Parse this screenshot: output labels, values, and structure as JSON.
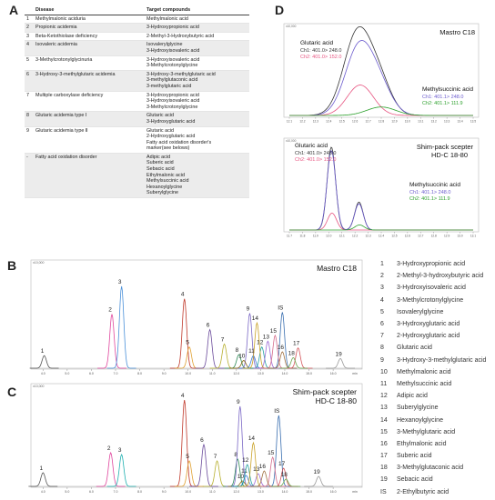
{
  "panel_letters": {
    "a": "A",
    "b": "B",
    "c": "C",
    "d": "D"
  },
  "table": {
    "header": {
      "disease": "Disease",
      "target": "Target compounds"
    },
    "rows": [
      {
        "no": "1",
        "disease": "Methylmalonic aciduria",
        "targets": [
          "Methylmalonic acid"
        ]
      },
      {
        "no": "2",
        "disease": "Propionic acidemia",
        "targets": [
          "3-Hydroxypropionic acid"
        ]
      },
      {
        "no": "3",
        "disease": "Beta-Ketothiolase deficiency",
        "targets": [
          "2-Methyl-3-Hydroxybutyric acid"
        ]
      },
      {
        "no": "4",
        "disease": "Isovaleric acidemia",
        "targets": [
          "Isovalerylglycine",
          "3-Hydroxyisovaleric acid"
        ]
      },
      {
        "no": "5",
        "disease": "3-Methylcrotonylglycinuria",
        "targets": [
          "3-Hydroxyisovaleric acid",
          "3-Methylcrotonylglycine"
        ]
      },
      {
        "no": "6",
        "disease": "3-Hydroxy-3-methylglutaric acidemia",
        "targets": [
          "3-Hydroxy-3-methylglutaric acid",
          "3-methylglutaconic acid",
          "3-methylglutaric acid"
        ]
      },
      {
        "no": "7",
        "disease": "Multiple carboxylase deficiency",
        "targets": [
          "3-Hydroxypropionic acid",
          "3-Hydroxyisovaleric acid",
          "3-Methylcrotonylglycine"
        ]
      },
      {
        "no": "8",
        "disease": "Glutaric acidemia type Ⅰ",
        "targets": [
          "Glutaric acid",
          "3-Hydroxyglutaric acid"
        ]
      },
      {
        "no": "9",
        "disease": "Glutaric acidemia type Ⅱ",
        "targets": [
          "Glutaric acid",
          "2-Hydroxyglutaric acid",
          "Fatty acid oxidation disorder's",
          "marker(see belows)"
        ]
      },
      {
        "no": "-",
        "disease": "Fatty acid oxidation disorder",
        "targets": [
          "Adipic acid",
          "Suberic acid",
          "Sebacic acid",
          "Ethylmalonic acid",
          "Methylsuccinic acid",
          "Hexanoylglycine",
          "Suberylglycine"
        ]
      }
    ]
  },
  "chart_b": {
    "title": "Mastro C18",
    "ymax_label": "x10,000",
    "ticks": [
      "4.0",
      "5.0",
      "6.0",
      "7.0",
      "8.0",
      "9.0",
      "10.0",
      "11.0",
      "12.0",
      "13.0",
      "14.0",
      "15.0",
      "16.0",
      "min"
    ],
    "peaks": [
      {
        "label": "1",
        "x": 4.05,
        "h": 0.13,
        "color": "#555555"
      },
      {
        "label": "2",
        "x": 6.85,
        "h": 0.56,
        "color": "#e0479e"
      },
      {
        "label": "3",
        "x": 7.25,
        "h": 0.85,
        "color": "#4a90d9"
      },
      {
        "label": "4",
        "x": 9.85,
        "h": 0.72,
        "color": "#c0392b"
      },
      {
        "label": "5",
        "x": 10.05,
        "h": 0.22,
        "color": "#e0a030"
      },
      {
        "label": "6",
        "x": 10.9,
        "h": 0.4,
        "color": "#6c4c9c"
      },
      {
        "label": "7",
        "x": 11.5,
        "h": 0.25,
        "color": "#b8b030"
      },
      {
        "label": "8",
        "x": 12.1,
        "h": 0.14,
        "color": "#2e8b57"
      },
      {
        "label": "9",
        "x": 12.55,
        "h": 0.57,
        "color": "#7b68c6"
      },
      {
        "label": "10",
        "x": 12.3,
        "h": 0.08,
        "color": "#8b6914"
      },
      {
        "label": "11",
        "x": 12.7,
        "h": 0.13,
        "color": "#3a7bd5"
      },
      {
        "label": "12",
        "x": 13.05,
        "h": 0.22,
        "color": "#20a0a0"
      },
      {
        "label": "13",
        "x": 13.3,
        "h": 0.28,
        "color": "#9c6ad6"
      },
      {
        "label": "14",
        "x": 12.85,
        "h": 0.47,
        "color": "#c9a227"
      },
      {
        "label": "IS",
        "x": 13.9,
        "h": 0.58,
        "color": "#3a6fb0"
      },
      {
        "label": "15",
        "x": 13.6,
        "h": 0.34,
        "color": "#d46a8a"
      },
      {
        "label": "16",
        "x": 13.9,
        "h": 0.17,
        "color": "#a07040"
      },
      {
        "label": "17",
        "x": 14.55,
        "h": 0.21,
        "color": "#d4555a"
      },
      {
        "label": "18",
        "x": 14.35,
        "h": 0.11,
        "color": "#6aa84f"
      },
      {
        "label": "19",
        "x": 16.3,
        "h": 0.1,
        "color": "#999999"
      }
    ]
  },
  "chart_c": {
    "title_line1": "Shim-pack scepter",
    "title_line2": "HD-C 18-80",
    "ymax_label": "x10,000",
    "ticks": [
      "4.0",
      "5.0",
      "6.0",
      "7.0",
      "8.0",
      "9.0",
      "10.0",
      "11.0",
      "12.0",
      "13.0",
      "14.0",
      "15.0",
      "16.0",
      "min"
    ],
    "peaks": [
      {
        "label": "1",
        "x": 4.0,
        "h": 0.15,
        "color": "#555555"
      },
      {
        "label": "2",
        "x": 6.8,
        "h": 0.37,
        "color": "#e0479e"
      },
      {
        "label": "3",
        "x": 7.25,
        "h": 0.35,
        "color": "#20b0b0"
      },
      {
        "label": "4",
        "x": 9.85,
        "h": 0.95,
        "color": "#c0392b"
      },
      {
        "label": "5",
        "x": 10.05,
        "h": 0.28,
        "color": "#e0a030"
      },
      {
        "label": "6",
        "x": 10.65,
        "h": 0.46,
        "color": "#6c4c9c"
      },
      {
        "label": "7",
        "x": 11.2,
        "h": 0.28,
        "color": "#b8b030"
      },
      {
        "label": "8",
        "x": 12.05,
        "h": 0.3,
        "color": "#2e8b57"
      },
      {
        "label": "9",
        "x": 12.15,
        "h": 0.88,
        "color": "#7b68c6"
      },
      {
        "label": "10",
        "x": 12.25,
        "h": 0.06,
        "color": "#8b6914"
      },
      {
        "label": "11",
        "x": 12.4,
        "h": 0.12,
        "color": "#3a7bd5"
      },
      {
        "label": "12",
        "x": 12.45,
        "h": 0.24,
        "color": "#20a0a0"
      },
      {
        "label": "13",
        "x": 12.9,
        "h": 0.14,
        "color": "#9c6ad6"
      },
      {
        "label": "14",
        "x": 12.7,
        "h": 0.48,
        "color": "#c9a227"
      },
      {
        "label": "IS",
        "x": 13.75,
        "h": 0.78,
        "color": "#3a6fb0"
      },
      {
        "label": "15",
        "x": 13.5,
        "h": 0.32,
        "color": "#d46a8a"
      },
      {
        "label": "16",
        "x": 13.15,
        "h": 0.17,
        "color": "#a07040"
      },
      {
        "label": "17",
        "x": 13.95,
        "h": 0.2,
        "color": "#d4555a"
      },
      {
        "label": "18",
        "x": 14.05,
        "h": 0.08,
        "color": "#6aa84f"
      },
      {
        "label": "19",
        "x": 15.4,
        "h": 0.11,
        "color": "#999999"
      }
    ]
  },
  "chart_d_top": {
    "title": "Mastro C18",
    "ymax_label": "x10,000",
    "ticks": [
      "12.1",
      "12.2",
      "12.3",
      "12.4",
      "12.5",
      "12.6",
      "12.7",
      "12.8",
      "12.9",
      "13.0",
      "13.1",
      "13.2",
      "13.3",
      "13.4",
      "13.5"
    ],
    "label1_name": "Glutaric acid",
    "label1_ch1": "Ch1: 401.0> 248.0",
    "label1_ch2": "Ch2: 401.0> 152.0",
    "label2_name": "Methylsuccinic acid",
    "label2_ch1": "Ch1: 401.1> 248.0",
    "label2_ch2": "Ch2: 401.1> 111.9"
  },
  "chart_d_bottom": {
    "title_line1": "Shim-pack scepter",
    "title_line2": "HD-C 18-80",
    "ymax_label": "x10,000",
    "ticks": [
      "11.7",
      "11.8",
      "11.9",
      "12.0",
      "12.1",
      "12.2",
      "12.3",
      "12.4",
      "12.5",
      "12.6",
      "12.7",
      "12.8",
      "12.9",
      "13.0",
      "13.1"
    ],
    "label1_name": "Glutaric acid",
    "label1_ch1": "Ch1: 401.0> 248.0",
    "label1_ch2": "Ch2: 401.0> 152.0",
    "label2_name": "Methylsuccinic acid",
    "label2_ch1": "Ch1: 401.1> 248.0",
    "label2_ch2": "Ch2: 401.1> 111.9"
  },
  "colors": {
    "ch1": "#6a5acd",
    "ch2": "#e75480",
    "ch3": "#2ca02c",
    "trace": "#333333"
  },
  "legend": [
    {
      "no": "1",
      "name": "3-Hydroxypropionic acid"
    },
    {
      "no": "2",
      "name": "2-Methyl-3-hydroxybutyric acid"
    },
    {
      "no": "3",
      "name": "3-Hydroxyisovaleric acid"
    },
    {
      "no": "4",
      "name": "3-Methylcrotonylglycine"
    },
    {
      "no": "5",
      "name": "Isovalerylglycine"
    },
    {
      "no": "6",
      "name": "3-Hydroxyglutaric acid"
    },
    {
      "no": "7",
      "name": "2-Hydroxyglutaric acid"
    },
    {
      "no": "8",
      "name": "Glutaric acid"
    },
    {
      "no": "9",
      "name": "3-Hydroxy-3-methylglutaric acid"
    },
    {
      "no": "10",
      "name": "Methylmalonic acid"
    },
    {
      "no": "11",
      "name": "Methylsuccinic acid"
    },
    {
      "no": "12",
      "name": "Adipic acid"
    },
    {
      "no": "13",
      "name": "Suberylglycine"
    },
    {
      "no": "14",
      "name": "Hexanoylglycine"
    },
    {
      "no": "15",
      "name": "3-Methylglutaric acid"
    },
    {
      "no": "16",
      "name": "Ethylmalonic acid"
    },
    {
      "no": "17",
      "name": "Suberic acid"
    },
    {
      "no": "18",
      "name": "3-Methylglutaconic acid"
    },
    {
      "no": "19",
      "name": "Sebacic acid"
    },
    {
      "no": "IS",
      "name": "2-Ethylbutyric acid"
    }
  ]
}
